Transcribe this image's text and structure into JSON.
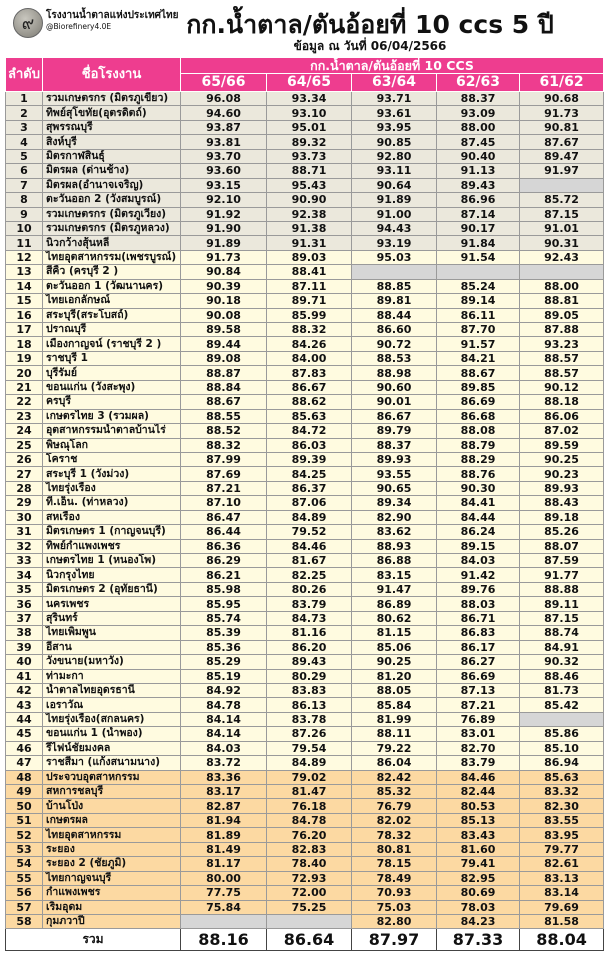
{
  "brand": {
    "name": "โรงงานน้ำตาลแห่งประเทศไทย",
    "handle": "@Biorefinery4.0E",
    "logo_glyph": "๙"
  },
  "title": "กก.น้ำตาล/ตันอ้อยที่ 10 ccs 5 ปี",
  "subtitle": "ข้อมูล ณ วันที่ 06/04/2566",
  "colors": {
    "header": "#ee3d8f",
    "group1": "#ebe8dc",
    "group2": "#fffbe0",
    "group3": "#fcd9a2",
    "empty": "#d6d6d6"
  },
  "table": {
    "col_rank": "ลำดับ",
    "col_name": "ชื่อโรงงาน",
    "group_header": "กก.น้ำตาล/ตันอ้อยที่ 10 CCS",
    "years": [
      "65/66",
      "64/65",
      "63/64",
      "62/63",
      "61/62"
    ],
    "rows": [
      {
        "rank": "1",
        "name": "รวมเกษตรกร (มิตรภูเขียว)",
        "values": [
          "96.08",
          "93.34",
          "93.71",
          "88.37",
          "90.68"
        ]
      },
      {
        "rank": "2",
        "name": "ทิพย์สุโขทัย(อุตรดิตถ์)",
        "values": [
          "94.60",
          "93.10",
          "93.61",
          "93.09",
          "91.73"
        ]
      },
      {
        "rank": "3",
        "name": "สุพรรณบุรี",
        "values": [
          "93.87",
          "95.01",
          "93.95",
          "88.00",
          "90.81"
        ]
      },
      {
        "rank": "4",
        "name": "สิงห์บุรี",
        "values": [
          "93.81",
          "89.32",
          "90.85",
          "87.45",
          "87.67"
        ]
      },
      {
        "rank": "5",
        "name": "มิตรกาฬสินธุ์",
        "values": [
          "93.70",
          "93.73",
          "92.80",
          "90.40",
          "89.47"
        ]
      },
      {
        "rank": "6",
        "name": "มิตรผล (ด่านช้าง)",
        "values": [
          "93.60",
          "88.71",
          "93.11",
          "91.13",
          "91.97"
        ]
      },
      {
        "rank": "7",
        "name": "มิตรผล(อำนาจเจริญ)",
        "values": [
          "93.15",
          "95.43",
          "90.64",
          "89.43",
          ""
        ]
      },
      {
        "rank": "8",
        "name": "ตะวันออก 2 (วังสมบูรณ์)",
        "values": [
          "92.10",
          "90.90",
          "91.89",
          "86.96",
          "85.72"
        ]
      },
      {
        "rank": "9",
        "name": "รวมเกษตรกร (มิตรภูเวียง)",
        "values": [
          "91.92",
          "92.38",
          "91.00",
          "87.14",
          "87.15"
        ]
      },
      {
        "rank": "10",
        "name": "รวมเกษตรกร (มิตรภูหลวง)",
        "values": [
          "91.90",
          "91.38",
          "94.43",
          "90.17",
          "91.01"
        ]
      },
      {
        "rank": "11",
        "name": "นิวกว้างสุ้นหลี",
        "values": [
          "91.89",
          "91.31",
          "93.19",
          "91.84",
          "90.31"
        ]
      },
      {
        "rank": "12",
        "name": "ไทยอุตสาหกรรม(เพชรบูรณ์)",
        "values": [
          "91.73",
          "89.03",
          "95.03",
          "91.54",
          "92.43"
        ]
      },
      {
        "rank": "13",
        "name": "สีคิ้ว (ครบุรี 2 )",
        "values": [
          "90.84",
          "88.41",
          "",
          "",
          ""
        ]
      },
      {
        "rank": "14",
        "name": "ตะวันออก 1 (วัฒนานคร)",
        "values": [
          "90.39",
          "87.11",
          "88.85",
          "85.24",
          "88.00"
        ]
      },
      {
        "rank": "15",
        "name": "ไทยเอกลักษณ์",
        "values": [
          "90.18",
          "89.71",
          "89.81",
          "89.14",
          "88.81"
        ]
      },
      {
        "rank": "16",
        "name": "สระบุรี(สระโบสถ์)",
        "values": [
          "90.08",
          "85.99",
          "88.44",
          "86.11",
          "89.05"
        ]
      },
      {
        "rank": "17",
        "name": "ปราณบุรี",
        "values": [
          "89.58",
          "88.32",
          "86.60",
          "87.70",
          "87.88"
        ]
      },
      {
        "rank": "18",
        "name": "เมืองกาญจน์ (ราชบุรี 2 )",
        "values": [
          "89.44",
          "84.26",
          "90.72",
          "91.57",
          "93.23"
        ]
      },
      {
        "rank": "19",
        "name": "ราชบุรี 1",
        "values": [
          "89.08",
          "84.00",
          "88.53",
          "84.21",
          "88.57"
        ]
      },
      {
        "rank": "20",
        "name": "บุรีรัมย์",
        "values": [
          "88.87",
          "87.83",
          "88.98",
          "88.67",
          "88.57"
        ]
      },
      {
        "rank": "21",
        "name": "ขอนแก่น (วังสะพุง)",
        "values": [
          "88.84",
          "86.67",
          "90.60",
          "89.85",
          "90.12"
        ]
      },
      {
        "rank": "22",
        "name": "ครบุรี",
        "values": [
          "88.67",
          "88.62",
          "90.01",
          "86.69",
          "88.18"
        ]
      },
      {
        "rank": "23",
        "name": "เกษตรไทย 3 (รวมผล)",
        "values": [
          "88.55",
          "85.63",
          "86.67",
          "86.68",
          "86.06"
        ]
      },
      {
        "rank": "24",
        "name": "อุตสาหกรรมน้ำตาลบ้านไร่",
        "values": [
          "88.52",
          "84.72",
          "89.79",
          "88.08",
          "87.02"
        ]
      },
      {
        "rank": "25",
        "name": "พิษณุโลก",
        "values": [
          "88.32",
          "86.03",
          "88.37",
          "88.79",
          "89.59"
        ]
      },
      {
        "rank": "26",
        "name": "โคราช",
        "values": [
          "87.99",
          "89.39",
          "89.93",
          "88.29",
          "90.25"
        ]
      },
      {
        "rank": "27",
        "name": "สระบุรี 1 (วังม่วง)",
        "values": [
          "87.69",
          "84.25",
          "93.55",
          "88.76",
          "90.23"
        ]
      },
      {
        "rank": "28",
        "name": "ไทยรุ่งเรือง",
        "values": [
          "87.21",
          "86.37",
          "90.65",
          "90.30",
          "89.93"
        ]
      },
      {
        "rank": "29",
        "name": "ที.เอ็น. (ท่าหลวง)",
        "values": [
          "87.10",
          "87.06",
          "89.34",
          "84.41",
          "88.43"
        ]
      },
      {
        "rank": "30",
        "name": "สหเรือง",
        "values": [
          "86.47",
          "84.89",
          "82.90",
          "84.44",
          "89.18"
        ]
      },
      {
        "rank": "31",
        "name": "มิตรเกษตร 1 (กาญจนบุรี)",
        "values": [
          "86.44",
          "79.52",
          "83.62",
          "86.24",
          "85.26"
        ]
      },
      {
        "rank": "32",
        "name": "ทิพย์กำแพงเพชร",
        "values": [
          "86.36",
          "84.46",
          "88.93",
          "89.15",
          "88.07"
        ]
      },
      {
        "rank": "33",
        "name": "เกษตรไทย 1 (หนองโพ)",
        "values": [
          "86.29",
          "81.67",
          "86.88",
          "84.03",
          "87.59"
        ]
      },
      {
        "rank": "34",
        "name": "นิวกรุงไทย",
        "values": [
          "86.21",
          "82.25",
          "83.15",
          "91.42",
          "91.77"
        ]
      },
      {
        "rank": "35",
        "name": "มิตรเกษตร 2 (อุทัยธานี)",
        "values": [
          "85.98",
          "80.26",
          "91.47",
          "89.76",
          "88.88"
        ]
      },
      {
        "rank": "36",
        "name": "นครเพชร",
        "values": [
          "85.95",
          "83.79",
          "86.89",
          "88.03",
          "89.11"
        ]
      },
      {
        "rank": "37",
        "name": "สุรินทร์",
        "values": [
          "85.74",
          "84.73",
          "80.62",
          "86.71",
          "87.15"
        ]
      },
      {
        "rank": "38",
        "name": "ไทยเพิ่มพูน",
        "values": [
          "85.39",
          "81.16",
          "81.15",
          "86.83",
          "88.74"
        ]
      },
      {
        "rank": "39",
        "name": "อีสาน",
        "values": [
          "85.36",
          "86.20",
          "85.06",
          "86.17",
          "84.91"
        ]
      },
      {
        "rank": "40",
        "name": "วังขนาย(มหาวัง)",
        "values": [
          "85.29",
          "89.43",
          "90.25",
          "86.27",
          "90.32"
        ]
      },
      {
        "rank": "41",
        "name": "ท่ามะกา",
        "values": [
          "85.19",
          "80.29",
          "81.20",
          "86.69",
          "88.46"
        ]
      },
      {
        "rank": "42",
        "name": "น้ำตาลไทยอุดรธานี",
        "values": [
          "84.92",
          "83.83",
          "88.05",
          "87.13",
          "81.73"
        ]
      },
      {
        "rank": "43",
        "name": "เอราวัณ",
        "values": [
          "84.78",
          "86.13",
          "85.84",
          "87.21",
          "85.42"
        ]
      },
      {
        "rank": "44",
        "name": "ไทยรุ่งเรือง(สกลนคร)",
        "values": [
          "84.14",
          "83.78",
          "81.99",
          "76.89",
          ""
        ]
      },
      {
        "rank": "45",
        "name": "ขอนแก่น 1 (น้ำพอง)",
        "values": [
          "84.14",
          "87.26",
          "88.11",
          "83.01",
          "85.86"
        ]
      },
      {
        "rank": "46",
        "name": "รีไฟน์ชัยมงคล",
        "values": [
          "84.03",
          "79.54",
          "79.22",
          "82.70",
          "85.10"
        ]
      },
      {
        "rank": "47",
        "name": "ราชสีมา (แก้งสนามนาง)",
        "values": [
          "83.72",
          "84.89",
          "86.04",
          "83.79",
          "86.94"
        ]
      },
      {
        "rank": "48",
        "name": "ประจวบอุตสาหกรรม",
        "values": [
          "83.36",
          "79.02",
          "82.42",
          "84.46",
          "85.63"
        ]
      },
      {
        "rank": "49",
        "name": "สหการชลบุรี",
        "values": [
          "83.17",
          "81.47",
          "85.32",
          "82.44",
          "83.32"
        ]
      },
      {
        "rank": "50",
        "name": "บ้านโป่ง",
        "values": [
          "82.87",
          "76.18",
          "76.79",
          "80.53",
          "82.30"
        ]
      },
      {
        "rank": "51",
        "name": "เกษตรผล",
        "values": [
          "81.94",
          "84.78",
          "82.02",
          "85.13",
          "83.55"
        ]
      },
      {
        "rank": "52",
        "name": "ไทยอุตสาหกรรม",
        "values": [
          "81.89",
          "76.20",
          "78.32",
          "83.43",
          "83.95"
        ]
      },
      {
        "rank": "53",
        "name": "ระยอง",
        "values": [
          "81.49",
          "82.83",
          "80.81",
          "81.60",
          "79.77"
        ]
      },
      {
        "rank": "54",
        "name": "ระยอง 2 (ชัยภูมิ)",
        "values": [
          "81.17",
          "78.40",
          "78.15",
          "79.41",
          "82.61"
        ]
      },
      {
        "rank": "55",
        "name": "ไทยกาญจนบุรี",
        "values": [
          "80.00",
          "72.93",
          "78.49",
          "82.95",
          "83.13"
        ]
      },
      {
        "rank": "56",
        "name": "กำแพงเพชร",
        "values": [
          "77.75",
          "72.00",
          "70.93",
          "80.69",
          "83.14"
        ]
      },
      {
        "rank": "57",
        "name": "เริ่มอุดม",
        "values": [
          "75.84",
          "75.25",
          "75.03",
          "78.03",
          "79.69"
        ]
      },
      {
        "rank": "58",
        "name": "กุมภวาปี",
        "values": [
          "",
          "",
          "82.80",
          "84.23",
          "81.58"
        ]
      }
    ],
    "total": {
      "label": "รวม",
      "values": [
        "88.16",
        "86.64",
        "87.97",
        "87.33",
        "88.04"
      ]
    }
  }
}
